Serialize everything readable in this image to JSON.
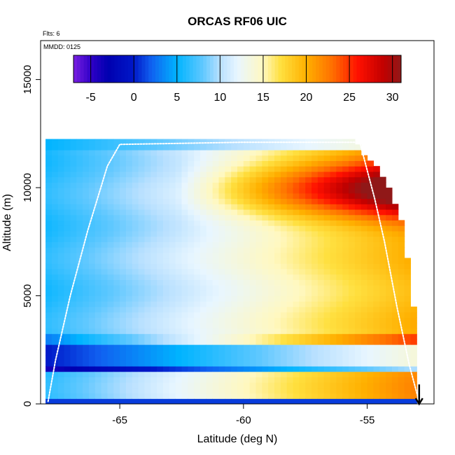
{
  "chart_data": {
    "type": "heatmap",
    "title": "ORCAS RF06 UIC",
    "flights_note": "Flts: 6",
    "date_note": "MMDD: 0125",
    "xlabel": "Latitude (deg N)",
    "ylabel": "Altitude (m)",
    "xlim": [
      -68.2,
      -52.3
    ],
    "ylim": [
      0,
      16800
    ],
    "x_ticks": [
      -65,
      -60,
      -55
    ],
    "x_tick_labels": [
      "-65",
      "-60",
      "-55"
    ],
    "y_ticks": [
      0,
      5000,
      10000,
      15000
    ],
    "y_tick_labels": [
      "0",
      "5000",
      "10000",
      "15000"
    ],
    "colorbar": {
      "range": [
        -7,
        31
      ],
      "ticks": [
        -5,
        0,
        5,
        10,
        15,
        20,
        25,
        30
      ],
      "tick_labels": [
        "-5",
        "0",
        "5",
        "10",
        "15",
        "20",
        "25",
        "30"
      ],
      "color_stops": [
        {
          "value": -7,
          "color": "#7a20e0"
        },
        {
          "value": -5,
          "color": "#3000c8"
        },
        {
          "value": -3,
          "color": "#0000b0"
        },
        {
          "value": 0,
          "color": "#0018c8"
        },
        {
          "value": 2,
          "color": "#1060f0"
        },
        {
          "value": 5,
          "color": "#00b4ff"
        },
        {
          "value": 8,
          "color": "#60c8ff"
        },
        {
          "value": 10,
          "color": "#b8e0ff"
        },
        {
          "value": 12,
          "color": "#e8f6ff"
        },
        {
          "value": 15,
          "color": "#fff8c0"
        },
        {
          "value": 17,
          "color": "#ffe040"
        },
        {
          "value": 20,
          "color": "#ffb000"
        },
        {
          "value": 23,
          "color": "#ff7000"
        },
        {
          "value": 26,
          "color": "#ff1000"
        },
        {
          "value": 29,
          "color": "#c00000"
        },
        {
          "value": 31,
          "color": "#901818"
        }
      ]
    },
    "value_field": {
      "description_units": "UIC color scale values",
      "grid": {
        "lat_start": -68.0,
        "lat_end": -52.8,
        "lat_step": 0.25,
        "alt_start": 0,
        "alt_end": 12250,
        "alt_step": 250
      },
      "data_extent_top": [
        {
          "lat": -68.0,
          "alt": 12250
        },
        {
          "lat": -55.6,
          "alt": 12250
        },
        {
          "lat": -54.3,
          "alt": 10500
        },
        {
          "lat": -53.6,
          "alt": 8500
        },
        {
          "lat": -53.2,
          "alt": 5500
        },
        {
          "lat": -53.0,
          "alt": 3000
        },
        {
          "lat": -52.9,
          "alt": 0
        }
      ],
      "horizontal_bands": [
        {
          "alt_min": 0,
          "alt_max": 250,
          "value": 1
        },
        {
          "alt_min": 1500,
          "alt_max": 1750,
          "value": -4
        },
        {
          "alt_min": 1750,
          "alt_max": 2750,
          "value": 0
        },
        {
          "alt_min": 2750,
          "alt_max": 3250,
          "value": 3
        }
      ]
    },
    "flight_track": {
      "color": "#ffffff",
      "points": [
        {
          "lat": -52.9,
          "alt": 100
        },
        {
          "lat": -53.3,
          "alt": 1800
        },
        {
          "lat": -53.8,
          "alt": 4500
        },
        {
          "lat": -54.3,
          "alt": 7500
        },
        {
          "lat": -54.7,
          "alt": 9500
        },
        {
          "lat": -55.3,
          "alt": 12100
        },
        {
          "lat": -60.0,
          "alt": 12100
        },
        {
          "lat": -65.0,
          "alt": 12000
        },
        {
          "lat": -65.5,
          "alt": 11000
        },
        {
          "lat": -66.3,
          "alt": 8000
        },
        {
          "lat": -67.0,
          "alt": 5000
        },
        {
          "lat": -67.6,
          "alt": 2000
        },
        {
          "lat": -67.9,
          "alt": 100
        }
      ]
    },
    "arrow": {
      "lat": -52.9,
      "alt_from": 900,
      "alt_to": 0,
      "color": "#000000"
    }
  }
}
